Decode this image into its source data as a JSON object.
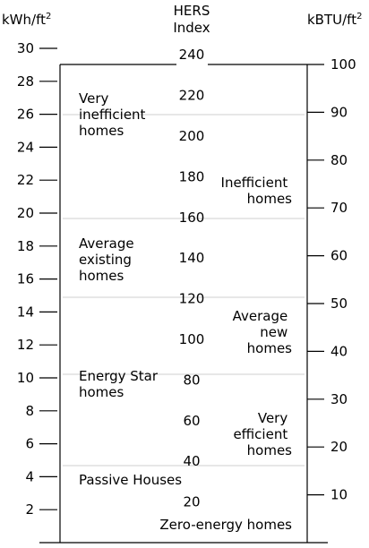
{
  "left_axis": {
    "unit": "kWh/ft",
    "unit_sup": "2",
    "ticks": [
      2,
      4,
      6,
      8,
      10,
      12,
      14,
      16,
      18,
      20,
      22,
      24,
      26,
      28,
      30
    ]
  },
  "right_axis": {
    "unit": "kBTU/ft",
    "unit_sup": "2",
    "ticks": [
      10,
      20,
      30,
      40,
      50,
      60,
      70,
      80,
      90,
      100
    ]
  },
  "center_scale": {
    "title_line1": "HERS",
    "title_line2": "Index",
    "values": [
      20,
      40,
      60,
      80,
      100,
      120,
      140,
      160,
      180,
      200,
      220,
      240
    ]
  },
  "categories": [
    {
      "id": "very-inefficient",
      "lines": [
        "Very",
        "inefficient",
        "homes"
      ]
    },
    {
      "id": "inefficient",
      "lines": [
        "Inefficient",
        "homes"
      ]
    },
    {
      "id": "average-existing",
      "lines": [
        "Average",
        "existing",
        "homes"
      ]
    },
    {
      "id": "average-new",
      "lines": [
        "Average",
        "new",
        "homes"
      ]
    },
    {
      "id": "energy-star",
      "lines": [
        "Energy Star",
        "homes"
      ]
    },
    {
      "id": "very-efficient",
      "lines": [
        "Very",
        "efficient",
        "homes"
      ]
    },
    {
      "id": "passive-houses",
      "lines": [
        "Passive Houses"
      ]
    },
    {
      "id": "zero-energy",
      "lines": [
        "Zero-energy homes"
      ]
    }
  ]
}
